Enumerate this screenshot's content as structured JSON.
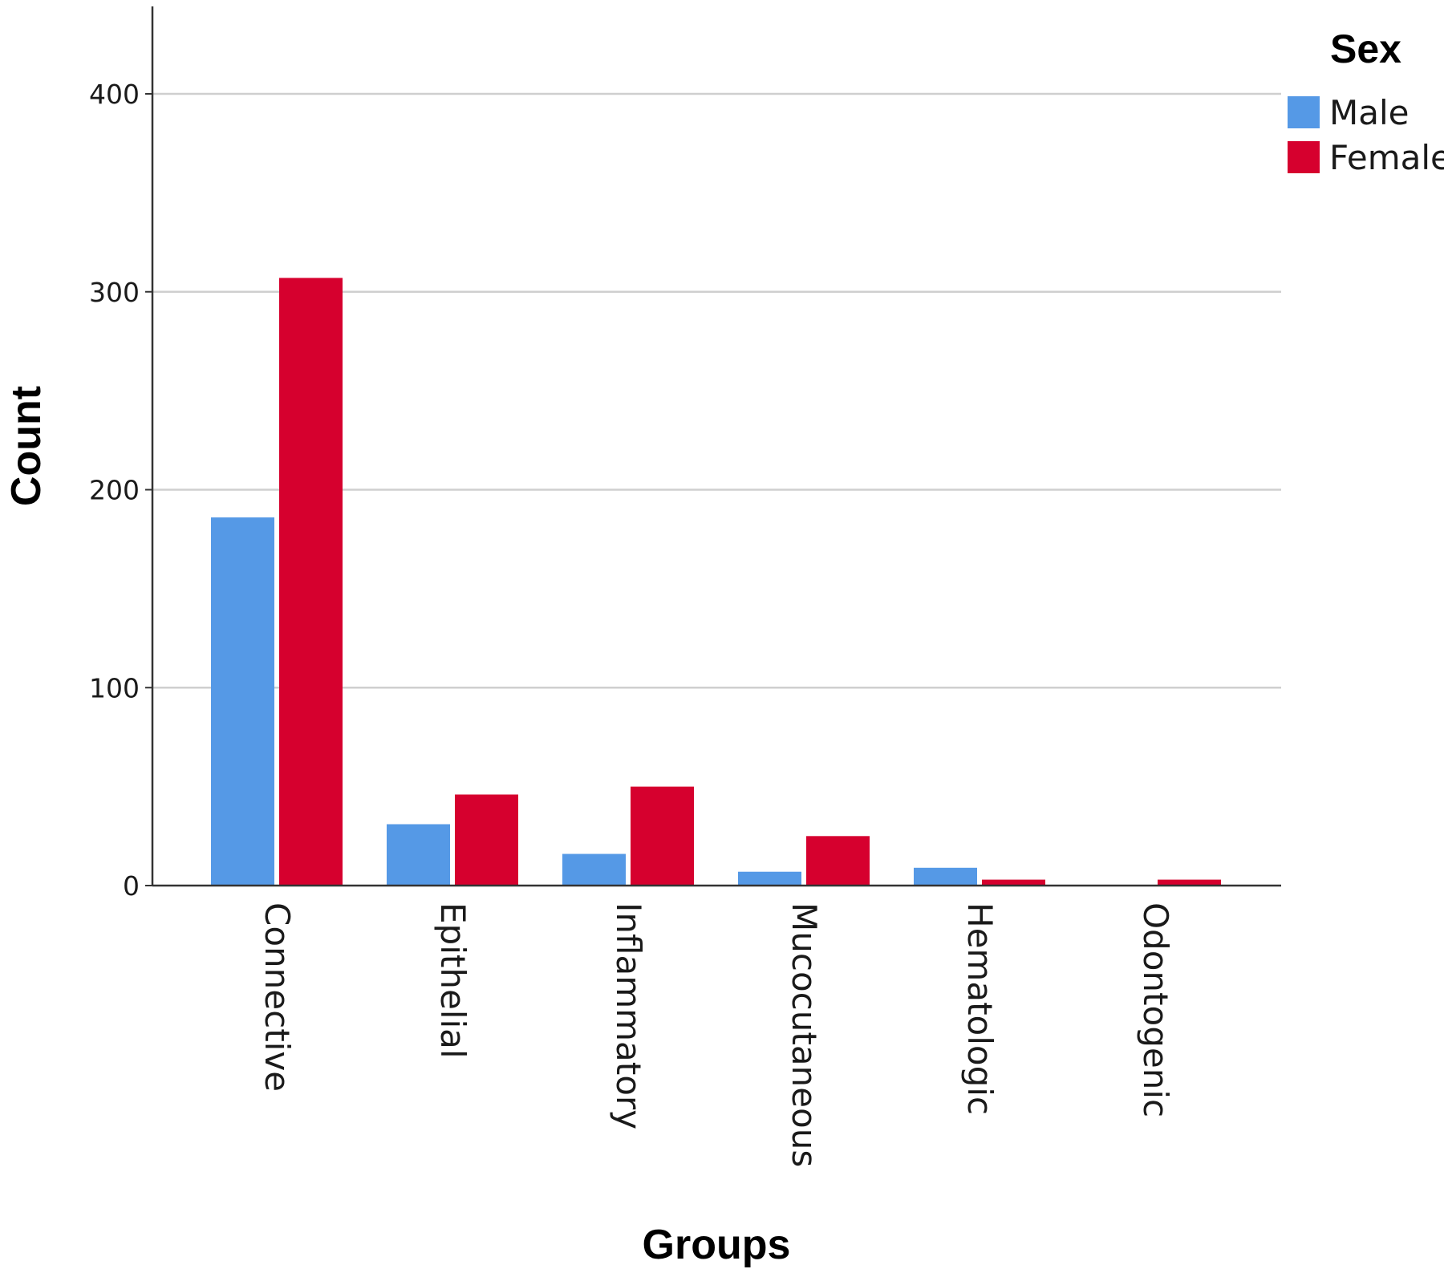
{
  "chart_data": {
    "type": "bar",
    "xlabel": "Groups",
    "ylabel": "Count",
    "ylim": [
      0,
      440
    ],
    "yticks": [
      0,
      100,
      200,
      300,
      400
    ],
    "grid": true,
    "legend": {
      "title": "Sex",
      "position": "top-right"
    },
    "categories": [
      "Connective",
      "Epithelial",
      "Inflammatory",
      "Mucocutaneous",
      "Hematologic",
      "Odontogenic"
    ],
    "series": [
      {
        "name": "Male",
        "color": "#5599e6",
        "values": [
          186,
          31,
          16,
          7,
          9,
          0
        ]
      },
      {
        "name": "Female",
        "color": "#d6002e",
        "values": [
          307,
          46,
          50,
          25,
          3,
          3
        ]
      }
    ]
  }
}
